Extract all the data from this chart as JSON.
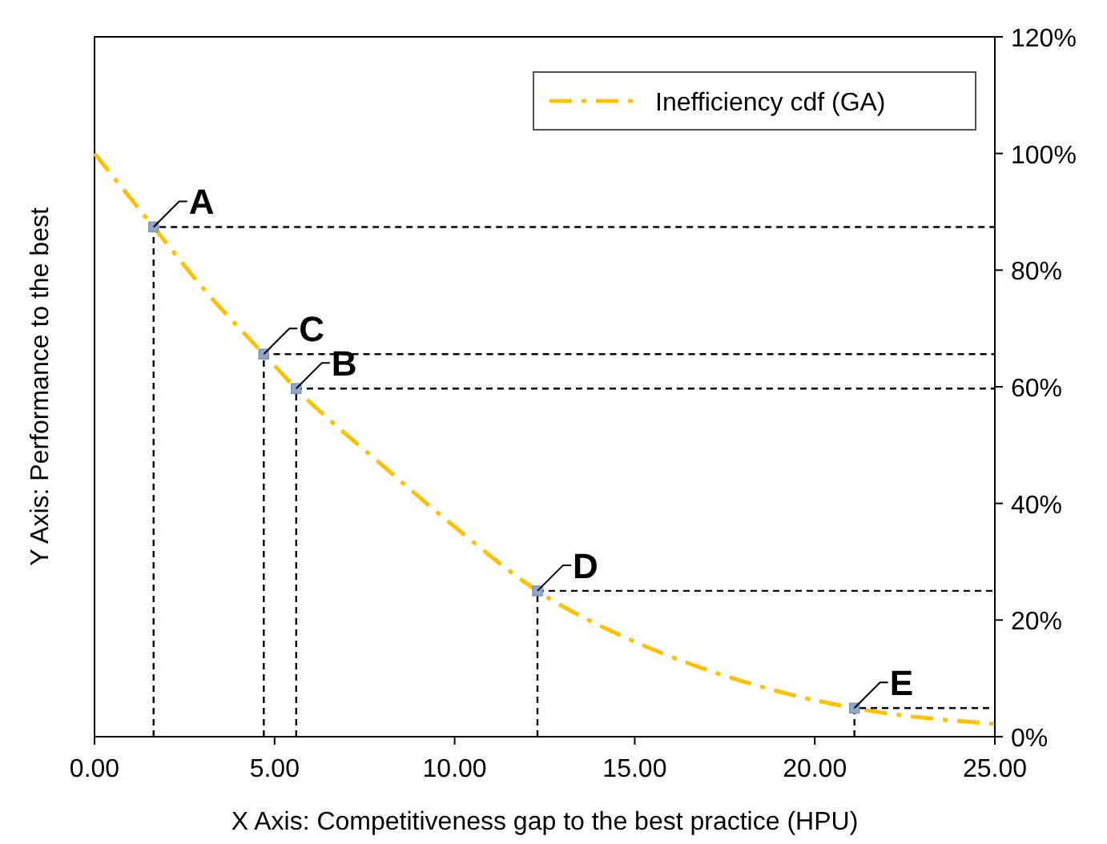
{
  "chart_data": {
    "type": "line",
    "xlabel": "X Axis: Competitiveness gap to the best practice (HPU)",
    "ylabel": "Y Axis: Performance to the best",
    "xlim": [
      0,
      25
    ],
    "xticks": [
      {
        "value": 0,
        "label": "0.00"
      },
      {
        "value": 5,
        "label": "5.00"
      },
      {
        "value": 10,
        "label": "10.00"
      },
      {
        "value": 15,
        "label": "15.00"
      },
      {
        "value": 20,
        "label": "20.00"
      },
      {
        "value": 25,
        "label": "25.00"
      }
    ],
    "ylim": [
      0,
      120
    ],
    "yticks": [
      {
        "value": 0,
        "label": "0%"
      },
      {
        "value": 20,
        "label": "20%"
      },
      {
        "value": 40,
        "label": "40%"
      },
      {
        "value": 60,
        "label": "60%"
      },
      {
        "value": 80,
        "label": "80%"
      },
      {
        "value": 100,
        "label": "100%"
      },
      {
        "value": 120,
        "label": "120%"
      }
    ],
    "grid": false,
    "legend": "top right",
    "series": [
      {
        "name": "Inefficiency cdf (GA)",
        "type": "line",
        "color": "#ffc000",
        "line_style": "dashed",
        "marker": "none",
        "x": [
          0,
          1.64,
          3,
          4.7,
          5.6,
          8,
          10,
          12.3,
          15,
          18,
          21.1,
          25
        ],
        "values": [
          100,
          87.4,
          77,
          65.6,
          59.7,
          46.5,
          36,
          25,
          16.3,
          9.5,
          4.9,
          2.2
        ]
      },
      {
        "type": "line",
        "color": "#000000",
        "line_style": "dotted",
        "marker": "none",
        "x": [
          1.64,
          1.64,
          25
        ],
        "values": [
          0,
          87.4,
          87.4
        ]
      },
      {
        "type": "line",
        "color": "#000000",
        "line_style": "dotted",
        "marker": "none",
        "x": [
          4.7,
          4.7,
          25
        ],
        "values": [
          0,
          65.6,
          65.6
        ]
      },
      {
        "type": "line",
        "color": "#000000",
        "line_style": "dotted",
        "marker": "none",
        "x": [
          5.6,
          5.6,
          25
        ],
        "values": [
          0,
          59.7,
          59.7
        ]
      },
      {
        "type": "line",
        "color": "#000000",
        "line_style": "dotted",
        "marker": "none",
        "x": [
          12.3,
          12.3,
          25
        ],
        "values": [
          0,
          25,
          25
        ]
      },
      {
        "type": "line",
        "color": "#000000",
        "line_style": "dotted",
        "marker": "none",
        "x": [
          21.1,
          21.1,
          25
        ],
        "values": [
          0,
          4.9,
          4.9
        ]
      },
      {
        "type": "scatter",
        "color": "#8ea9c8",
        "marker": "square",
        "x": [
          1.64,
          4.7,
          5.6,
          12.3,
          21.1
        ],
        "values": [
          87.4,
          65.6,
          59.7,
          25,
          4.9
        ]
      }
    ],
    "annotations": [
      {
        "text": "A",
        "x": 1.64,
        "y": 87.4
      },
      {
        "text": "C",
        "x": 4.7,
        "y": 65.6
      },
      {
        "text": "B",
        "x": 5.6,
        "y": 59.7
      },
      {
        "text": "D",
        "x": 12.3,
        "y": 25
      },
      {
        "text": "E",
        "x": 21.1,
        "y": 4.9
      }
    ]
  }
}
